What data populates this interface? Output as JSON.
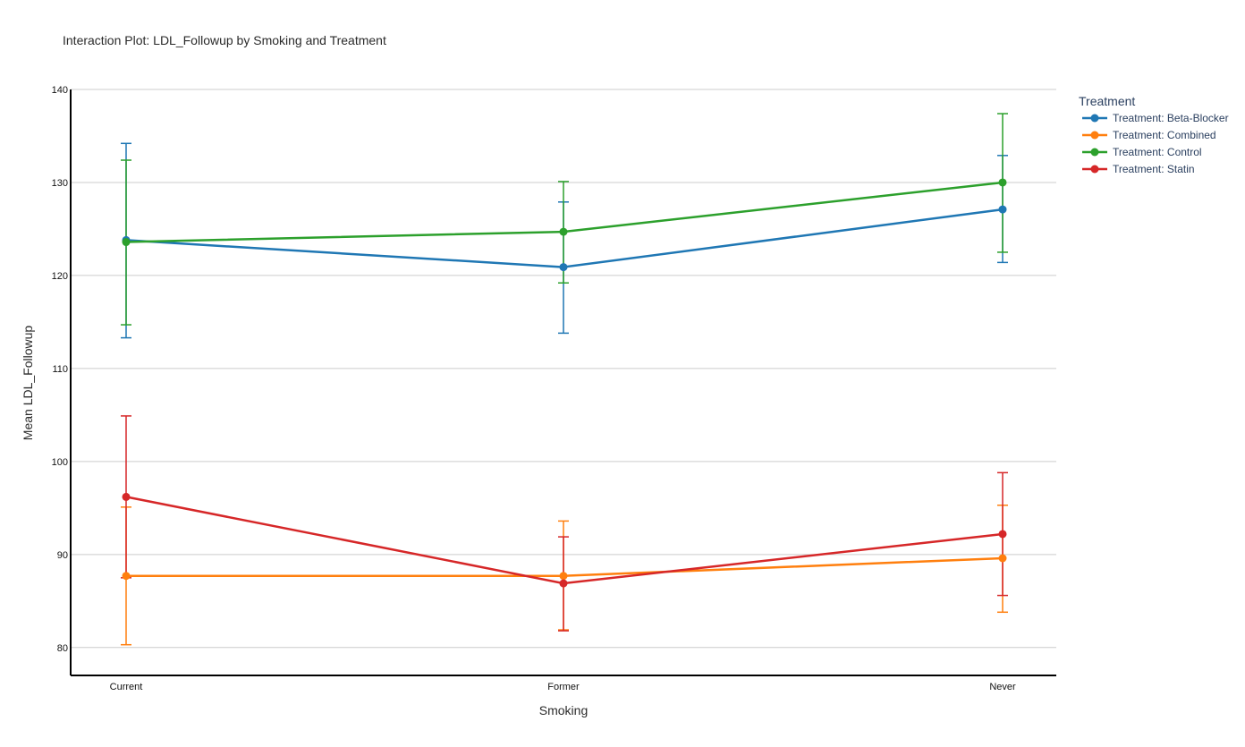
{
  "chart_data": {
    "type": "line",
    "title": "Interaction Plot: LDL_Followup by Smoking and Treatment",
    "xlabel": "Smoking",
    "ylabel": "Mean LDL_Followup",
    "categories": [
      "Current",
      "Former",
      "Never"
    ],
    "ylim": [
      77,
      140
    ],
    "yticks": [
      80,
      90,
      100,
      110,
      120,
      130,
      140
    ],
    "grid": true,
    "legend": {
      "title": "Treatment",
      "placement": "right"
    },
    "series": [
      {
        "name": "Treatment: Beta-Blocker",
        "color": "#1f77b4",
        "values": [
          123.8,
          120.9,
          127.1
        ],
        "err_low": [
          113.3,
          113.8,
          121.4
        ],
        "err_high": [
          134.2,
          127.9,
          132.9
        ]
      },
      {
        "name": "Treatment: Combined",
        "color": "#ff7f0e",
        "values": [
          87.7,
          87.7,
          89.6
        ],
        "err_low": [
          80.3,
          81.9,
          83.8
        ],
        "err_high": [
          95.1,
          93.6,
          95.3
        ]
      },
      {
        "name": "Treatment: Control",
        "color": "#2ca02c",
        "values": [
          123.6,
          124.7,
          130.0
        ],
        "err_low": [
          114.7,
          119.2,
          122.5
        ],
        "err_high": [
          132.4,
          130.1,
          137.4
        ]
      },
      {
        "name": "Treatment: Statin",
        "color": "#d62728",
        "values": [
          96.2,
          86.9,
          92.2
        ],
        "err_low": [
          87.5,
          81.8,
          85.6
        ],
        "err_high": [
          104.9,
          91.9,
          98.8
        ]
      }
    ]
  }
}
